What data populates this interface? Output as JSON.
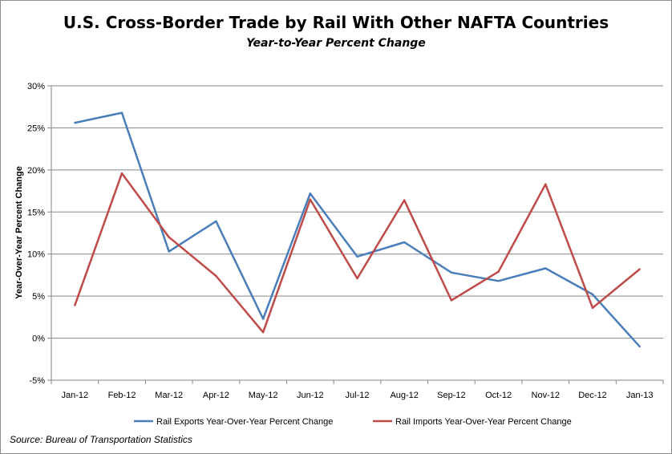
{
  "chart_data": {
    "type": "line",
    "title": "U.S. Cross-Border Trade by Rail With Other NAFTA Countries",
    "subtitle": "Year-to-Year Percent Change",
    "ylabel": "Year-Over-Year Percent Change",
    "xlabel": "",
    "categories": [
      "Jan-12",
      "Feb-12",
      "Mar-12",
      "Apr-12",
      "May-12",
      "Jun-12",
      "Jul-12",
      "Aug-12",
      "Sep-12",
      "Oct-12",
      "Nov-12",
      "Dec-12",
      "Jan-13"
    ],
    "yticks": [
      "-5%",
      "0%",
      "5%",
      "10%",
      "15%",
      "20%",
      "25%",
      "30%"
    ],
    "ylim": [
      -5,
      30
    ],
    "grid": "horizontal",
    "legend_position": "bottom",
    "series": [
      {
        "name": "Rail Exports Year-Over-Year Percent Change",
        "color": "#4a7ebb",
        "values": [
          25.6,
          26.8,
          10.3,
          13.9,
          2.3,
          17.2,
          9.7,
          11.4,
          7.8,
          6.8,
          8.3,
          5.2,
          -1.0
        ]
      },
      {
        "name": "Rail Imports Year-Over-Year Percent Change",
        "color": "#be4b48",
        "values": [
          3.9,
          19.6,
          12.0,
          7.4,
          0.7,
          16.5,
          7.1,
          16.4,
          4.5,
          7.9,
          18.3,
          3.6,
          8.2
        ]
      }
    ],
    "source": "Source: Bureau of Transportation Statistics"
  }
}
